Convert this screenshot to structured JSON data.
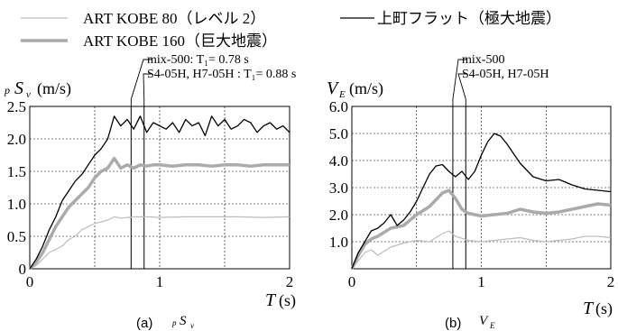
{
  "legend": {
    "items": [
      {
        "label": "ART KOBE 80（レベル 2）",
        "color": "#bbbbbb",
        "width": "thin"
      },
      {
        "label": "ART KOBE 160（巨大地震）",
        "color": "#aaaaaa",
        "width": "thick"
      },
      {
        "label": "上町フラット（極大地震）",
        "color": "#000000",
        "width": "thin"
      }
    ]
  },
  "chart_data": [
    {
      "type": "line",
      "panel_caption": "(a)",
      "panel_symbol": "pSv",
      "ylabel_unit": "(m/s)",
      "xlabel_unit": "(s)",
      "xlim": [
        0,
        2
      ],
      "ylim": [
        0,
        2.5
      ],
      "xticks": [
        "0",
        "1",
        "2"
      ],
      "yticks": [
        "0",
        "0.5",
        "1.0",
        "1.5",
        "2.0",
        "2.5"
      ],
      "grid": true,
      "annotations": [
        {
          "text": "mix-500: T₁= 0.78 s",
          "x": 0.78
        },
        {
          "text": "S4-05H, H7-05H : T₁= 0.88 s",
          "x": 0.88
        }
      ],
      "series": [
        {
          "name": "上町フラット（極大地震）",
          "x": [
            0,
            0.05,
            0.1,
            0.15,
            0.2,
            0.25,
            0.3,
            0.35,
            0.4,
            0.45,
            0.5,
            0.55,
            0.6,
            0.65,
            0.7,
            0.75,
            0.8,
            0.85,
            0.9,
            0.95,
            1.0,
            1.05,
            1.1,
            1.15,
            1.2,
            1.25,
            1.3,
            1.35,
            1.4,
            1.45,
            1.5,
            1.55,
            1.6,
            1.65,
            1.7,
            1.75,
            1.8,
            1.85,
            1.9,
            1.95,
            2.0
          ],
          "values": [
            0,
            0.15,
            0.35,
            0.6,
            0.8,
            1.05,
            1.2,
            1.35,
            1.45,
            1.6,
            1.75,
            1.85,
            2.0,
            2.35,
            2.2,
            2.3,
            2.15,
            2.35,
            2.1,
            2.25,
            2.2,
            2.15,
            2.25,
            2.1,
            2.3,
            2.2,
            2.25,
            2.05,
            2.35,
            2.2,
            2.3,
            2.15,
            2.2,
            2.3,
            2.25,
            2.1,
            2.2,
            2.25,
            2.15,
            2.2,
            2.1
          ]
        },
        {
          "name": "ART KOBE 160（巨大地震）",
          "x": [
            0,
            0.05,
            0.1,
            0.15,
            0.2,
            0.25,
            0.3,
            0.35,
            0.4,
            0.45,
            0.5,
            0.55,
            0.6,
            0.65,
            0.7,
            0.75,
            0.8,
            0.85,
            0.9,
            0.95,
            1.0,
            1.1,
            1.2,
            1.3,
            1.4,
            1.5,
            1.6,
            1.7,
            1.8,
            1.9,
            2.0
          ],
          "values": [
            0,
            0.1,
            0.25,
            0.45,
            0.65,
            0.8,
            0.95,
            1.05,
            1.15,
            1.25,
            1.4,
            1.5,
            1.55,
            1.7,
            1.55,
            1.6,
            1.55,
            1.6,
            1.58,
            1.6,
            1.6,
            1.58,
            1.6,
            1.6,
            1.58,
            1.6,
            1.6,
            1.58,
            1.6,
            1.6,
            1.6
          ]
        },
        {
          "name": "ART KOBE 80（レベル 2）",
          "x": [
            0,
            0.05,
            0.1,
            0.15,
            0.2,
            0.25,
            0.3,
            0.35,
            0.4,
            0.45,
            0.5,
            0.55,
            0.6,
            0.65,
            0.7,
            0.8,
            0.9,
            1.0,
            1.2,
            1.4,
            1.6,
            1.8,
            2.0
          ],
          "values": [
            0,
            0.05,
            0.15,
            0.25,
            0.3,
            0.35,
            0.45,
            0.5,
            0.6,
            0.65,
            0.7,
            0.72,
            0.75,
            0.8,
            0.78,
            0.8,
            0.8,
            0.79,
            0.8,
            0.8,
            0.8,
            0.79,
            0.8
          ]
        }
      ]
    },
    {
      "type": "line",
      "panel_caption": "(b)",
      "panel_symbol": "VE",
      "ylabel_unit": "(m/s)",
      "xlabel_unit": "(s)",
      "xlim": [
        0,
        2
      ],
      "ylim": [
        0,
        6.0
      ],
      "xticks": [
        "0",
        "1",
        "2"
      ],
      "yticks": [
        "1.0",
        "2.0",
        "3.0",
        "4.0",
        "5.0",
        "6.0"
      ],
      "grid": true,
      "annotations": [
        {
          "text": "mix-500",
          "x": 0.78
        },
        {
          "text": "S4-05H, H7-05H",
          "x": 0.88
        }
      ],
      "series": [
        {
          "name": "上町フラット（極大地震）",
          "x": [
            0,
            0.05,
            0.1,
            0.15,
            0.2,
            0.25,
            0.3,
            0.35,
            0.4,
            0.45,
            0.5,
            0.55,
            0.6,
            0.65,
            0.7,
            0.75,
            0.8,
            0.85,
            0.9,
            0.95,
            1.0,
            1.05,
            1.1,
            1.15,
            1.2,
            1.3,
            1.4,
            1.5,
            1.6,
            1.7,
            1.8,
            1.9,
            2.0
          ],
          "values": [
            0,
            0.6,
            1.0,
            1.4,
            1.5,
            1.7,
            2.0,
            1.6,
            1.8,
            2.1,
            2.5,
            3.0,
            3.5,
            3.8,
            3.85,
            3.6,
            3.4,
            3.6,
            3.3,
            3.6,
            4.2,
            4.7,
            5.0,
            4.9,
            4.6,
            3.9,
            3.4,
            3.25,
            3.3,
            3.1,
            2.95,
            2.9,
            2.85
          ]
        },
        {
          "name": "ART KOBE 160（巨大地震）",
          "x": [
            0,
            0.05,
            0.1,
            0.15,
            0.2,
            0.3,
            0.4,
            0.5,
            0.6,
            0.7,
            0.75,
            0.8,
            0.85,
            0.9,
            1.0,
            1.1,
            1.2,
            1.3,
            1.4,
            1.5,
            1.6,
            1.7,
            1.8,
            1.9,
            2.0
          ],
          "values": [
            0,
            0.5,
            0.9,
            1.1,
            1.2,
            1.5,
            1.6,
            2.0,
            2.3,
            2.8,
            2.9,
            2.6,
            2.2,
            2.05,
            1.95,
            2.0,
            2.05,
            2.2,
            2.1,
            2.05,
            2.1,
            2.2,
            2.3,
            2.4,
            2.35
          ]
        },
        {
          "name": "ART KOBE 80（レベル 2）",
          "x": [
            0,
            0.05,
            0.1,
            0.15,
            0.2,
            0.3,
            0.4,
            0.5,
            0.6,
            0.7,
            0.75,
            0.8,
            0.9,
            1.0,
            1.1,
            1.2,
            1.3,
            1.4,
            1.5,
            1.6,
            1.7,
            1.8,
            1.9,
            2.0
          ],
          "values": [
            0,
            0.3,
            0.6,
            0.7,
            0.5,
            0.8,
            0.95,
            1.05,
            1.0,
            1.3,
            1.4,
            1.2,
            1.05,
            1.0,
            1.05,
            1.1,
            1.15,
            1.05,
            1.0,
            1.05,
            1.1,
            1.2,
            1.2,
            1.15
          ]
        }
      ]
    }
  ]
}
